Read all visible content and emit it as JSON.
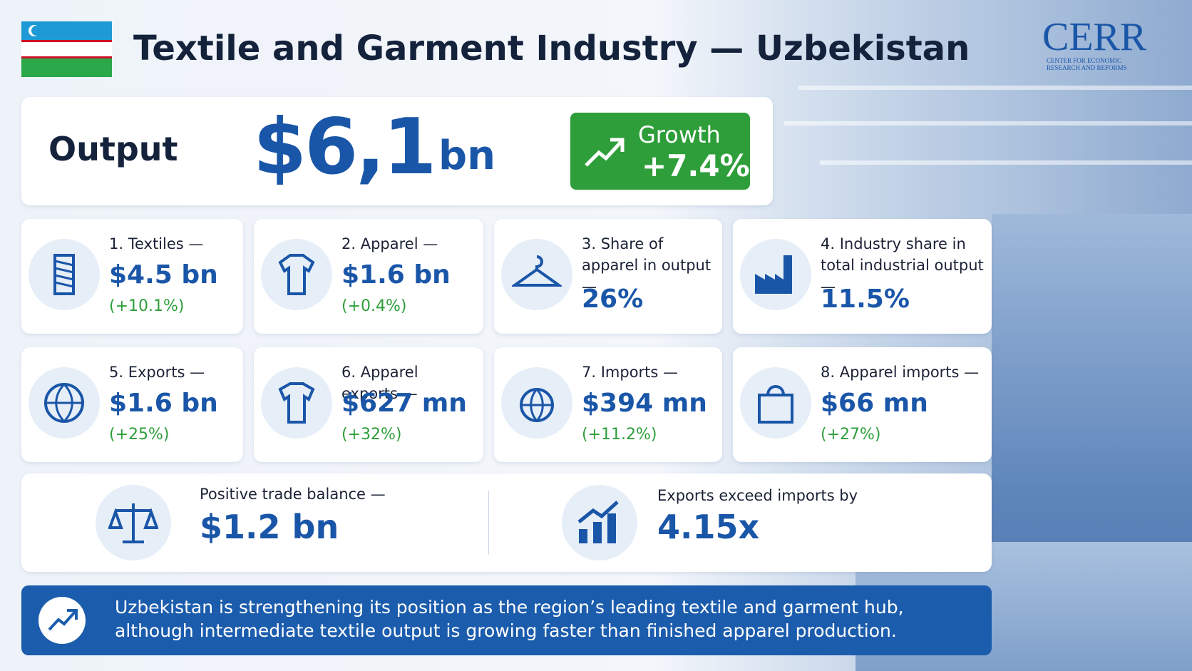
{
  "header": {
    "title": "Textile and Garment Industry — Uzbekistan",
    "logo": {
      "name": "CERR",
      "subtitle": [
        "CENTER FOR ECONOMIC",
        "RESEARCH AND REFORMS"
      ]
    }
  },
  "output": {
    "label": "Output",
    "value": "$6,1",
    "unit": "bn",
    "growth_label": "Growth",
    "growth_value": "+7.4%"
  },
  "cards": [
    {
      "label": "1. Textiles —",
      "value": "$4.5 bn",
      "change": "(+10.1%)"
    },
    {
      "label": "2. Apparel —",
      "value": "$1.6 bn",
      "change": "(+0.4%)"
    },
    {
      "label": "3. Share of apparel in output —",
      "value": "26%"
    },
    {
      "label": "4. Industry share in total industrial output —",
      "value": "11.5%"
    },
    {
      "label": "5. Exports —",
      "value": "$1.6 bn",
      "change": "(+25%)"
    },
    {
      "label": "6. Apparel exports —",
      "value": "$627 mn",
      "change": "(+32%)"
    },
    {
      "label": "7. Imports —",
      "value": "$394 mn",
      "change": "(+11.2%)"
    },
    {
      "label": "8. Apparel imports —",
      "value": "$66 mn",
      "change": "(+27%)"
    }
  ],
  "balance": {
    "label": "Positive trade balance —",
    "value": "$1.2 bn"
  },
  "ratio": {
    "label": "Exports exceed imports by",
    "value": "4.15x"
  },
  "footer": {
    "lines": [
      "Uzbekistan is strengthening its position as the region’s leading textile and garment hub,",
      "although intermediate textile output is growing faster than finished apparel production."
    ]
  }
}
